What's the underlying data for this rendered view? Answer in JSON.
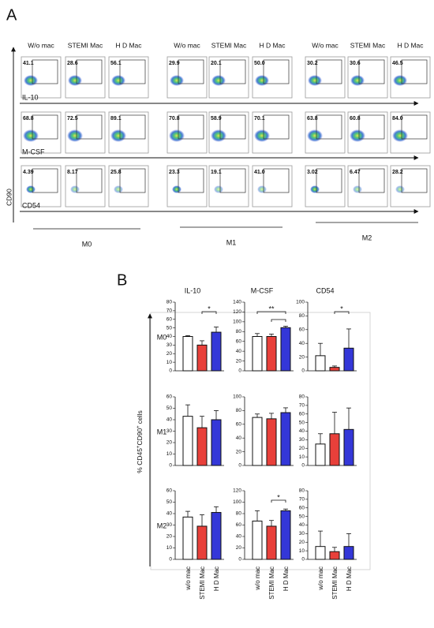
{
  "panel_a": {
    "label": "A",
    "y_label": "CD90",
    "columns": [
      "W/o mac",
      "STEMI Mac",
      "H D Mac"
    ],
    "groups": [
      "M0",
      "M1",
      "M2"
    ],
    "markers": [
      {
        "name": "IL-10",
        "values": [
          [
            "41.1",
            "28.6",
            "56.1"
          ],
          [
            "29.9",
            "20.1",
            "50.0"
          ],
          [
            "30.2",
            "30.6",
            "46.5"
          ]
        ]
      },
      {
        "name": "M-CSF",
        "values": [
          [
            "68.8",
            "72.5",
            "89.1"
          ],
          [
            "70.8",
            "58.9",
            "70.1"
          ],
          [
            "63.8",
            "60.8",
            "84.0"
          ]
        ]
      },
      {
        "name": "CD54",
        "values": [
          [
            "4.39",
            "8.17",
            "25.8"
          ],
          [
            "23.3",
            "19.1",
            "41.0"
          ],
          [
            "3.02",
            "6.47",
            "28.2"
          ]
        ]
      }
    ]
  },
  "panel_b": {
    "label": "B",
    "columns": [
      "IL-10",
      "M-CSF",
      "CD54"
    ],
    "rows": [
      "M0",
      "M1",
      "M2"
    ],
    "y_label": [
      "% CD45",
      "+",
      "CD90",
      "+",
      "cells"
    ],
    "categories": [
      "w/o mac",
      "STEMI Mac",
      "H D Mac"
    ],
    "colors": [
      "#ffffff",
      "#e8403a",
      "#3437d8"
    ]
  },
  "chart_data": [
    {
      "type": "bar",
      "ylim": [
        0,
        80
      ],
      "yticks": [
        0,
        10,
        20,
        30,
        40,
        50,
        60,
        70,
        80
      ],
      "values": [
        40,
        30,
        45
      ],
      "errors": [
        1,
        5,
        6
      ],
      "brackets": [
        {
          "label": "*",
          "between": [
            "STEMI Mac",
            "H D Mac"
          ]
        }
      ]
    },
    {
      "type": "bar",
      "ylim": [
        0,
        140
      ],
      "yticks": [
        0,
        20,
        40,
        60,
        80,
        100,
        120,
        140
      ],
      "values": [
        70,
        70,
        88
      ],
      "errors": [
        6,
        5,
        3
      ],
      "brackets": [
        {
          "label": "**",
          "between": [
            "w/o mac",
            "H D Mac"
          ]
        },
        {
          "between": [
            "STEMI Mac",
            "H D Mac"
          ]
        }
      ]
    },
    {
      "type": "bar",
      "ylim": [
        0,
        100
      ],
      "yticks": [
        0,
        20,
        40,
        60,
        80,
        100
      ],
      "values": [
        22,
        5,
        33
      ],
      "errors": [
        18,
        2,
        28
      ],
      "brackets": [
        {
          "label": "*",
          "between": [
            "STEMI Mac",
            "H D Mac"
          ]
        }
      ]
    },
    {
      "type": "bar",
      "ylim": [
        0,
        60
      ],
      "yticks": [
        0,
        10,
        20,
        30,
        40,
        50,
        60
      ],
      "values": [
        43,
        33,
        40
      ],
      "errors": [
        10,
        10,
        8
      ]
    },
    {
      "type": "bar",
      "ylim": [
        0,
        100
      ],
      "yticks": [
        0,
        20,
        40,
        60,
        80,
        100
      ],
      "values": [
        70,
        68,
        77
      ],
      "errors": [
        5,
        8,
        7
      ]
    },
    {
      "type": "bar",
      "ylim": [
        0,
        80
      ],
      "yticks": [
        0,
        10,
        20,
        30,
        40,
        50,
        60,
        70,
        80
      ],
      "values": [
        25,
        37,
        42
      ],
      "errors": [
        12,
        25,
        25
      ]
    },
    {
      "type": "bar",
      "ylim": [
        0,
        60
      ],
      "yticks": [
        0,
        10,
        20,
        30,
        40,
        50,
        60
      ],
      "values": [
        37,
        29,
        41
      ],
      "errors": [
        5,
        10,
        5
      ]
    },
    {
      "type": "bar",
      "ylim": [
        0,
        120
      ],
      "yticks": [
        0,
        20,
        40,
        60,
        80,
        100,
        120
      ],
      "values": [
        67,
        58,
        85
      ],
      "errors": [
        18,
        10,
        3
      ],
      "brackets": [
        {
          "label": "*",
          "between": [
            "STEMI Mac",
            "H D Mac"
          ]
        }
      ]
    },
    {
      "type": "bar",
      "ylim": [
        0,
        80
      ],
      "yticks": [
        0,
        10,
        20,
        30,
        40,
        50,
        60,
        70,
        80
      ],
      "values": [
        15,
        9,
        15
      ],
      "errors": [
        18,
        5,
        15
      ]
    }
  ]
}
